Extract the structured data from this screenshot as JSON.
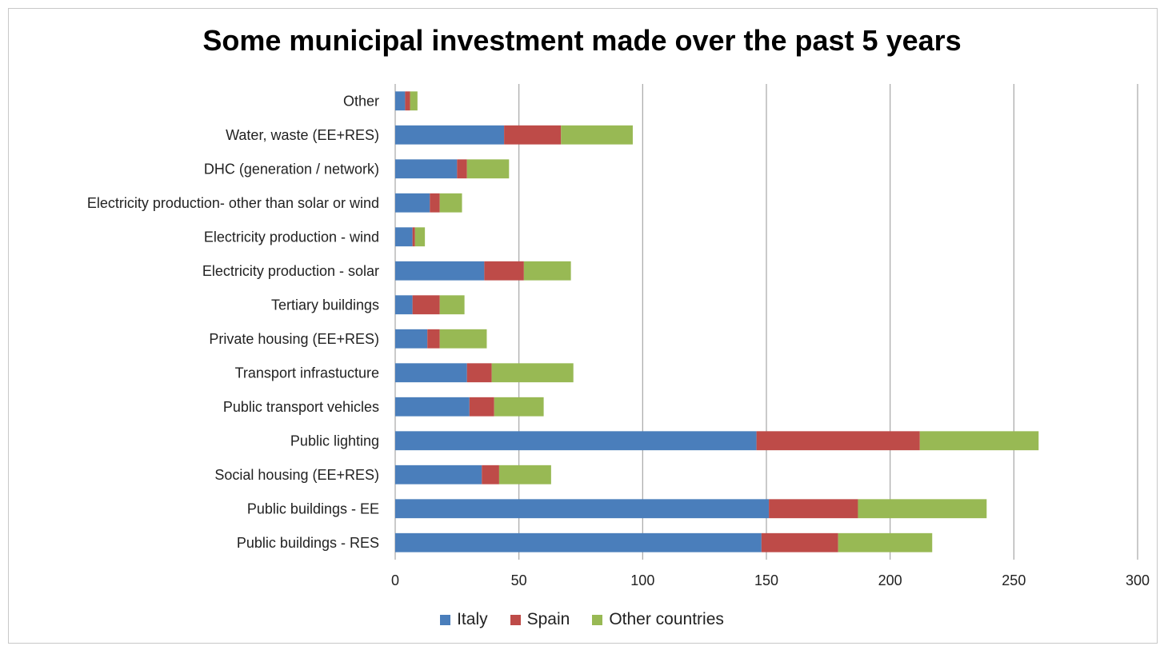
{
  "chart_data": {
    "type": "bar",
    "orientation": "horizontal",
    "stacked": true,
    "title": "Some municipal investment made over the past 5 years",
    "categories": [
      "Other",
      "Water, waste (EE+RES)",
      "DHC  (generation / network)",
      "Electricity production- other than solar or wind",
      "Electricity production  - wind",
      "Electricity production - solar",
      "Tertiary buildings",
      "Private housing (EE+RES)",
      "Transport infrastucture",
      "Public transport vehicles",
      "Public lighting",
      "Social housing (EE+RES)",
      "Public buildings - EE",
      "Public buildings - RES"
    ],
    "series": [
      {
        "name": "Italy",
        "color": "#4a7ebb",
        "values": [
          4,
          44,
          25,
          14,
          7,
          36,
          7,
          13,
          29,
          30,
          146,
          35,
          151,
          148
        ]
      },
      {
        "name": "Spain",
        "color": "#be4b48",
        "values": [
          2,
          23,
          4,
          4,
          1,
          16,
          11,
          5,
          10,
          10,
          66,
          7,
          36,
          31
        ]
      },
      {
        "name": "Other countries",
        "color": "#98b954",
        "values": [
          3,
          29,
          17,
          9,
          4,
          19,
          10,
          19,
          33,
          20,
          48,
          21,
          52,
          38
        ]
      }
    ],
    "xlim": [
      0,
      300
    ],
    "xticks": [
      "0",
      "50",
      "100",
      "150",
      "200",
      "250",
      "300"
    ],
    "grid": "vertical",
    "legend_position": "bottom"
  }
}
